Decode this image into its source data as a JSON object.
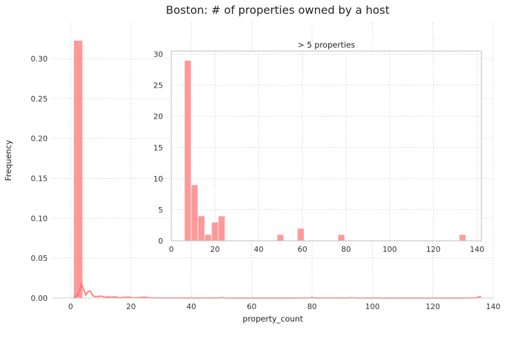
{
  "chart_data": [
    {
      "type": "bar",
      "title": "Boston: # of properties owned by a host",
      "xlabel": "property_count",
      "ylabel": "Frequency",
      "xlim": [
        -6,
        140
      ],
      "ylim": [
        0,
        0.345
      ],
      "xticks": [
        0,
        20,
        40,
        60,
        80,
        100,
        120,
        140
      ],
      "yticks": [
        0.0,
        0.05,
        0.1,
        0.15,
        0.2,
        0.25,
        0.3
      ],
      "xtick_labels": [
        "0",
        "20",
        "40",
        "60",
        "80",
        "100",
        "120",
        "140"
      ],
      "ytick_labels": [
        "0.00",
        "0.05",
        "0.10",
        "0.15",
        "0.20",
        "0.25",
        "0.30"
      ],
      "grid": true,
      "color": "#ff7f7f",
      "bins": [
        {
          "x0": 1.0,
          "x1": 4.0,
          "value": 0.323
        }
      ],
      "kde": {
        "color": "#ff6b6b",
        "x": [
          1,
          1.5,
          2.2,
          3,
          3.6,
          4.2,
          5,
          5.8,
          6.5,
          7.3,
          8.2,
          9.2,
          10.2,
          11.4,
          12.5,
          13.6,
          14.8,
          16,
          17.5,
          19,
          20.5,
          22,
          23.4,
          24.6,
          26,
          28,
          32,
          40,
          49,
          50,
          51,
          55,
          70,
          79,
          80,
          81,
          92,
          93,
          94,
          110,
          130,
          134,
          135,
          136
        ],
        "y": [
          0.0,
          0.002,
          0.003,
          0.01,
          0.018,
          0.012,
          0.004,
          0.008,
          0.009,
          0.003,
          0.002,
          0.002,
          0.0025,
          0.001,
          0.0015,
          0.001,
          0.0015,
          0.0005,
          0.0008,
          0.0012,
          0.0004,
          0.0003,
          0.0009,
          0.0011,
          0.0003,
          0.0002,
          0.0001,
          0.0001,
          0.0001,
          0.0006,
          0.0001,
          0.0,
          0.0,
          0.0001,
          0.0006,
          0.0001,
          0.0001,
          0.0005,
          0.0001,
          0.0,
          0.0,
          0.0002,
          0.0012,
          0.0018
        ]
      }
    },
    {
      "type": "bar",
      "title": "> 5 properties",
      "xlabel": "",
      "ylabel": "",
      "xlim": [
        0,
        142
      ],
      "ylim": [
        0,
        30.5
      ],
      "xticks": [
        0,
        20,
        40,
        60,
        80,
        100,
        120,
        140
      ],
      "yticks": [
        0,
        5,
        10,
        15,
        20,
        25,
        30
      ],
      "xtick_labels": [
        "0",
        "20",
        "40",
        "60",
        "80",
        "100",
        "120",
        "140"
      ],
      "ytick_labels": [
        "0",
        "5",
        "10",
        "15",
        "20",
        "25",
        "30"
      ],
      "grid": true,
      "color": "#ff7f7f",
      "bins": [
        {
          "x0": 6.0,
          "x1": 9.1,
          "value": 29
        },
        {
          "x0": 9.1,
          "x1": 12.2,
          "value": 9
        },
        {
          "x0": 12.2,
          "x1": 15.3,
          "value": 4
        },
        {
          "x0": 15.3,
          "x1": 18.4,
          "value": 1
        },
        {
          "x0": 18.4,
          "x1": 21.5,
          "value": 3
        },
        {
          "x0": 21.5,
          "x1": 24.6,
          "value": 4
        },
        {
          "x0": 48.4,
          "x1": 51.5,
          "value": 1
        },
        {
          "x0": 57.7,
          "x1": 60.8,
          "value": 2
        },
        {
          "x0": 76.3,
          "x1": 79.4,
          "value": 1
        },
        {
          "x0": 131.8,
          "x1": 134.9,
          "value": 1
        }
      ]
    }
  ]
}
